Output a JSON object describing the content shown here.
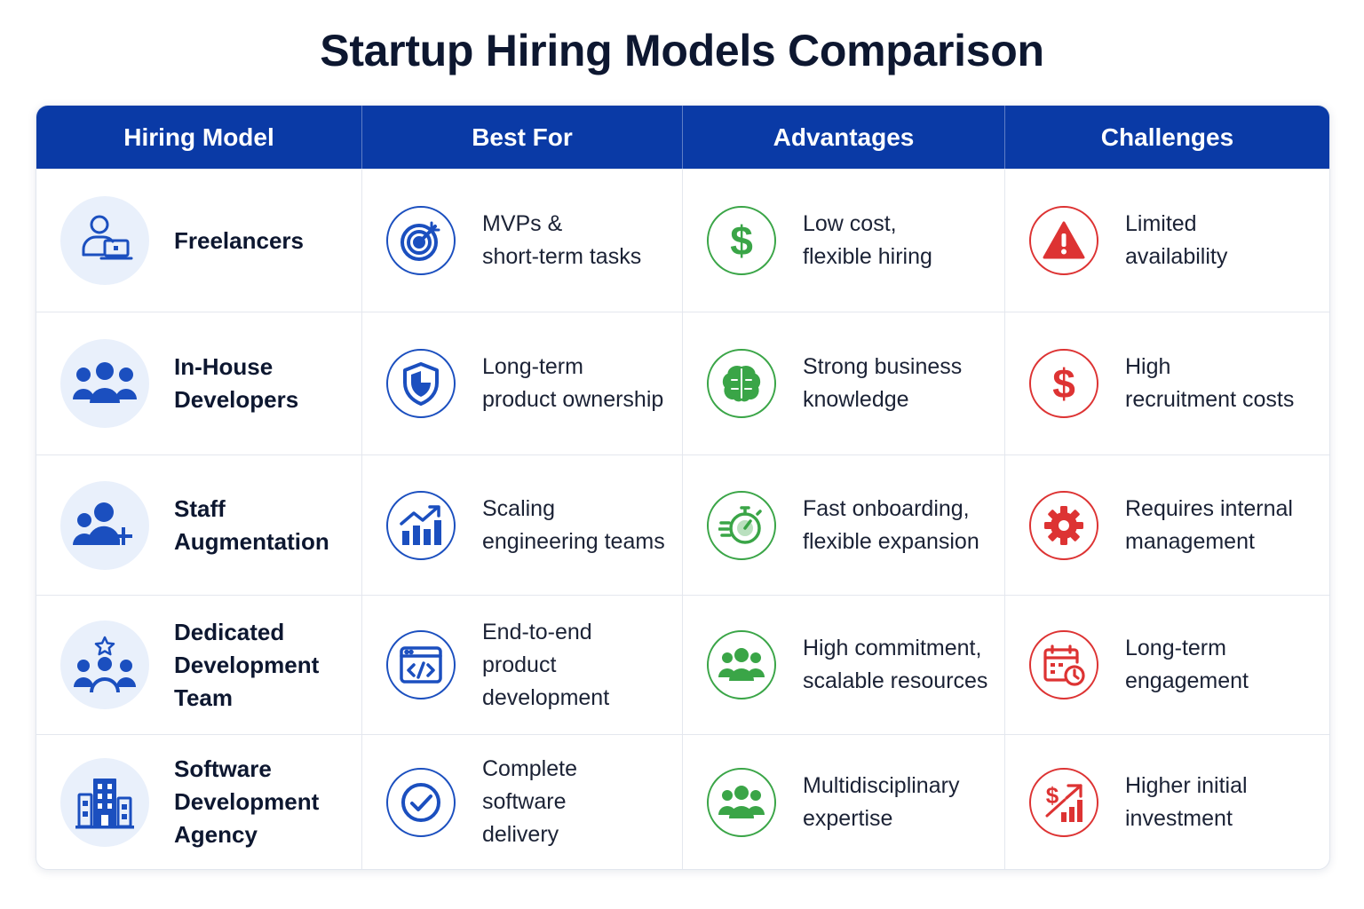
{
  "title": "Startup Hiring Models Comparison",
  "headers": [
    "Hiring Model",
    "Best For",
    "Advantages",
    "Challenges"
  ],
  "colors": {
    "header_bg": "#0a3aa6",
    "blue": "#1b4fbf",
    "green": "#3aa547",
    "red": "#dd3333"
  },
  "rows": [
    {
      "model": "Freelancers",
      "model_icon": "person-laptop-icon",
      "best_for": "MVPs &\nshort-term tasks",
      "best_for_icon": "target-icon",
      "advantage": "Low cost,\nflexible hiring",
      "advantage_icon": "dollar-icon",
      "challenge": "Limited\navailability",
      "challenge_icon": "warning-icon"
    },
    {
      "model": "In-House\nDevelopers",
      "model_icon": "team-icon",
      "best_for": "Long-term\nproduct ownership",
      "best_for_icon": "shield-icon",
      "advantage": "Strong business\nknowledge",
      "advantage_icon": "brain-icon",
      "challenge": "High\nrecruitment costs",
      "challenge_icon": "dollar-icon"
    },
    {
      "model": "Staff\nAugmentation",
      "model_icon": "add-people-icon",
      "best_for": "Scaling\nengineering teams",
      "best_for_icon": "growth-chart-icon",
      "advantage": "Fast onboarding,\nflexible expansion",
      "advantage_icon": "stopwatch-icon",
      "challenge": "Requires internal\nmanagement",
      "challenge_icon": "gear-icon"
    },
    {
      "model": "Dedicated\nDevelopment\nTeam",
      "model_icon": "star-team-icon",
      "best_for": "End-to-end\nproduct\ndevelopment",
      "best_for_icon": "code-window-icon",
      "advantage": "High commitment,\nscalable resources",
      "advantage_icon": "group-icon",
      "challenge": "Long-term\nengagement",
      "challenge_icon": "calendar-clock-icon"
    },
    {
      "model": "Software\nDevelopment\nAgency",
      "model_icon": "building-icon",
      "best_for": "Complete\nsoftware\ndelivery",
      "best_for_icon": "check-circle-icon",
      "advantage": "Multidisciplinary\nexpertise",
      "advantage_icon": "group-icon",
      "challenge": "Higher initial\ninvestment",
      "challenge_icon": "cost-chart-icon"
    }
  ]
}
